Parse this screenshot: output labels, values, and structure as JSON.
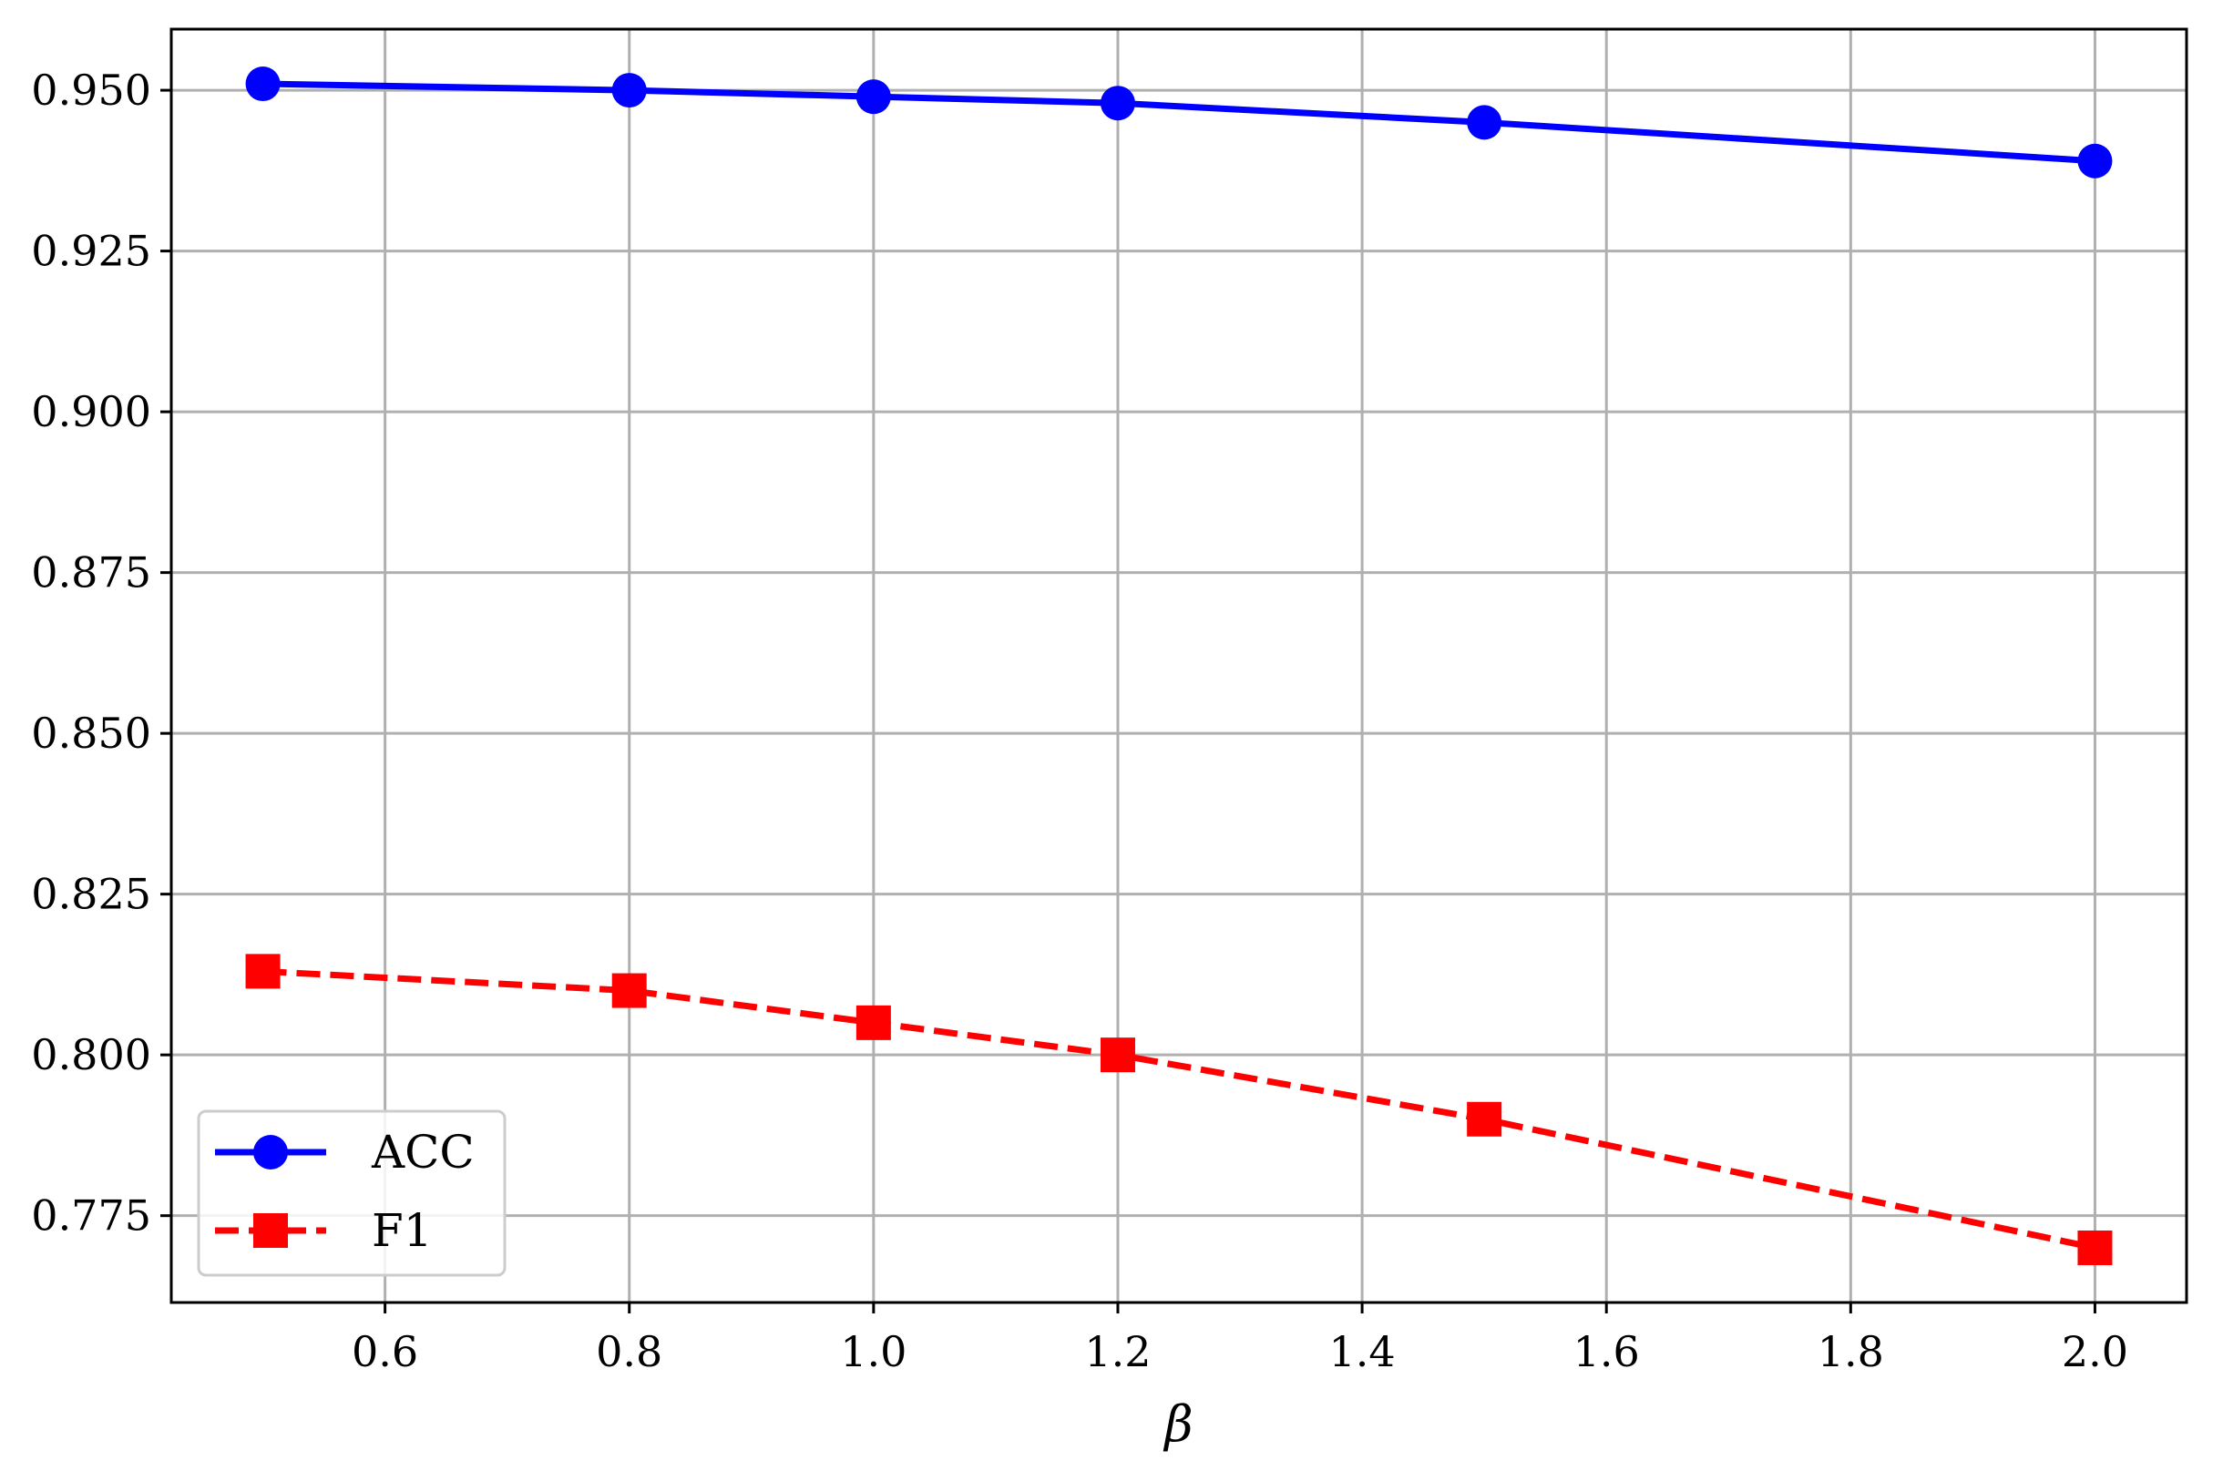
{
  "chart_data": {
    "type": "line",
    "title": "",
    "xlabel": "β",
    "ylabel": "",
    "xlim": [
      0.425,
      2.075
    ],
    "ylim": [
      0.7615,
      0.9595
    ],
    "xticks": [
      0.6,
      0.8,
      1.0,
      1.2,
      1.4,
      1.6,
      1.8,
      2.0
    ],
    "xtick_labels": [
      "0.6",
      "0.8",
      "1.0",
      "1.2",
      "1.4",
      "1.6",
      "1.8",
      "2.0"
    ],
    "yticks": [
      0.775,
      0.8,
      0.825,
      0.85,
      0.875,
      0.9,
      0.925,
      0.95
    ],
    "ytick_labels": [
      "0.775",
      "0.800",
      "0.825",
      "0.850",
      "0.875",
      "0.900",
      "0.925",
      "0.950"
    ],
    "grid": true,
    "legend_position": "lower-left",
    "x": [
      0.5,
      0.8,
      1.0,
      1.2,
      1.5,
      2.0
    ],
    "series": [
      {
        "name": "ACC",
        "values": [
          0.951,
          0.95,
          0.949,
          0.948,
          0.945,
          0.939
        ],
        "color": "#0000ff",
        "line_style": "solid",
        "marker": "circle"
      },
      {
        "name": "F1",
        "values": [
          0.813,
          0.81,
          0.805,
          0.8,
          0.79,
          0.77
        ],
        "color": "#ff0000",
        "line_style": "dashed",
        "marker": "square"
      }
    ]
  }
}
